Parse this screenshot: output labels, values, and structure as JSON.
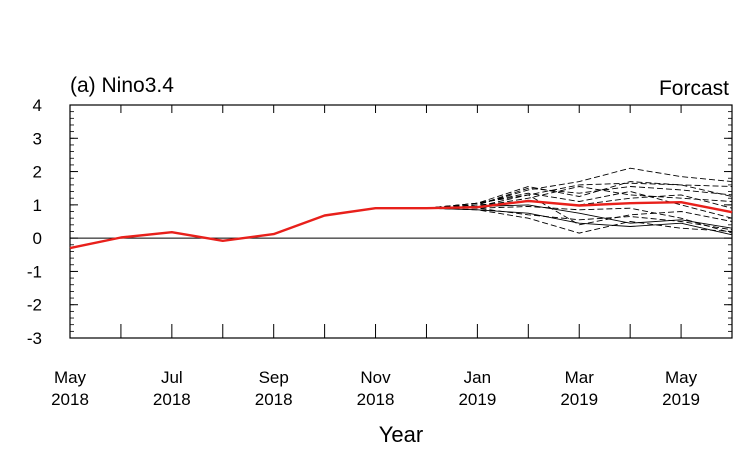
{
  "chart_data": {
    "type": "line",
    "title_left": "(a) Nino3.4",
    "title_right": "Forcast",
    "xlabel": "Year",
    "ylabel": "",
    "ylim": [
      -3,
      4
    ],
    "yticks": [
      "4",
      "3",
      "2",
      "1",
      "0",
      "-1",
      "-2",
      "-3"
    ],
    "xticks": [
      {
        "month": "May",
        "year": "2018"
      },
      {
        "month": "Jul",
        "year": "2018"
      },
      {
        "month": "Sep",
        "year": "2018"
      },
      {
        "month": "Nov",
        "year": "2018"
      },
      {
        "month": "Jan",
        "year": "2019"
      },
      {
        "month": "Mar",
        "year": "2019"
      },
      {
        "month": "May",
        "year": "2019"
      }
    ],
    "x": [
      "2018-05",
      "2018-06",
      "2018-07",
      "2018-08",
      "2018-09",
      "2018-10",
      "2018-11",
      "2018-12",
      "2019-01",
      "2019-02",
      "2019-03",
      "2019-04",
      "2019-05",
      "2019-06"
    ],
    "observed_color": "#e8201b",
    "member_color": "#000000",
    "zero_line": true,
    "series": [
      {
        "role": "observed / ensemble mean",
        "values": [
          -0.3,
          0.02,
          0.18,
          -0.08,
          0.12,
          0.68,
          0.9,
          0.9,
          0.93,
          1.12,
          0.98,
          1.05,
          1.08,
          0.78
        ]
      }
    ],
    "ensemble_members": [
      {
        "style": "dashed",
        "values": [
          null,
          null,
          null,
          null,
          null,
          null,
          null,
          0.9,
          1.0,
          1.45,
          1.7,
          2.1,
          1.85,
          1.7
        ]
      },
      {
        "style": "dashed",
        "values": [
          null,
          null,
          null,
          null,
          null,
          null,
          null,
          0.9,
          1.05,
          1.3,
          1.6,
          1.65,
          1.6,
          1.55
        ]
      },
      {
        "style": "dashed",
        "values": [
          null,
          null,
          null,
          null,
          null,
          null,
          null,
          0.9,
          1.0,
          1.5,
          1.35,
          1.55,
          1.45,
          1.3
        ]
      },
      {
        "style": "dashed",
        "values": [
          null,
          null,
          null,
          null,
          null,
          null,
          null,
          0.9,
          0.95,
          1.2,
          1.55,
          1.3,
          1.2,
          1.1
        ]
      },
      {
        "style": "dashed",
        "values": [
          null,
          null,
          null,
          null,
          null,
          null,
          null,
          0.9,
          1.0,
          1.1,
          1.0,
          1.2,
          1.3,
          0.9
        ]
      },
      {
        "style": "dashed",
        "values": [
          null,
          null,
          null,
          null,
          null,
          null,
          null,
          0.9,
          0.85,
          0.6,
          0.15,
          0.5,
          0.3,
          0.2
        ]
      },
      {
        "style": "dashed",
        "values": [
          null,
          null,
          null,
          null,
          null,
          null,
          null,
          0.9,
          0.9,
          0.7,
          0.55,
          0.65,
          0.5,
          0.25
        ]
      },
      {
        "style": "dashed",
        "values": [
          null,
          null,
          null,
          null,
          null,
          null,
          null,
          0.9,
          0.95,
          1.3,
          0.4,
          0.7,
          0.8,
          0.5
        ]
      },
      {
        "style": "dashed",
        "values": [
          null,
          null,
          null,
          null,
          null,
          null,
          null,
          0.9,
          1.05,
          1.55,
          1.25,
          1.7,
          1.6,
          1.25
        ]
      },
      {
        "style": "dashed",
        "values": [
          null,
          null,
          null,
          null,
          null,
          null,
          null,
          0.9,
          1.05,
          1.35,
          1.1,
          1.4,
          1.0,
          0.6
        ]
      },
      {
        "style": "dashed",
        "values": [
          null,
          null,
          null,
          null,
          null,
          null,
          null,
          0.9,
          0.9,
          0.95,
          0.85,
          0.9,
          0.6,
          0.15
        ]
      },
      {
        "style": "solid",
        "values": [
          null,
          null,
          null,
          null,
          null,
          null,
          null,
          0.9,
          0.95,
          1.0,
          0.75,
          0.45,
          0.55,
          0.3
        ]
      },
      {
        "style": "solid",
        "values": [
          null,
          null,
          null,
          null,
          null,
          null,
          null,
          0.9,
          0.85,
          0.75,
          0.45,
          0.35,
          0.45,
          0.1
        ]
      }
    ]
  }
}
